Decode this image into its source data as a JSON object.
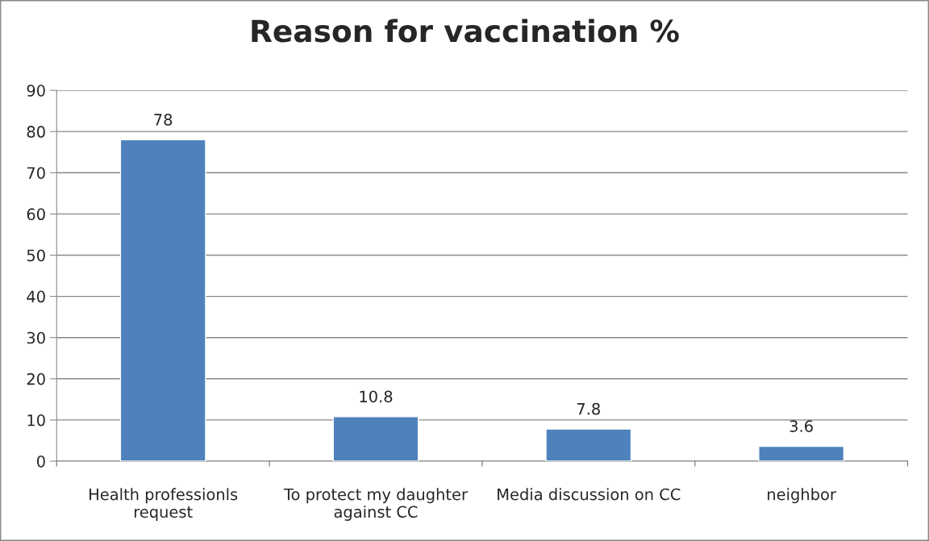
{
  "chart_data": {
    "type": "bar",
    "title": "Reason for vaccination %",
    "categories": [
      "Health professionls\nrequest",
      "To protect my daughter\nagainst CC",
      "Media discussion on CC",
      "neighbor"
    ],
    "values": [
      78,
      10.8,
      7.8,
      3.6
    ],
    "color": "#4f81bd",
    "ylim": [
      0,
      90
    ],
    "yticks": [
      0,
      10,
      20,
      30,
      40,
      50,
      60,
      70,
      80,
      90
    ],
    "grid": "y",
    "data_labels": true,
    "legend": false
  }
}
